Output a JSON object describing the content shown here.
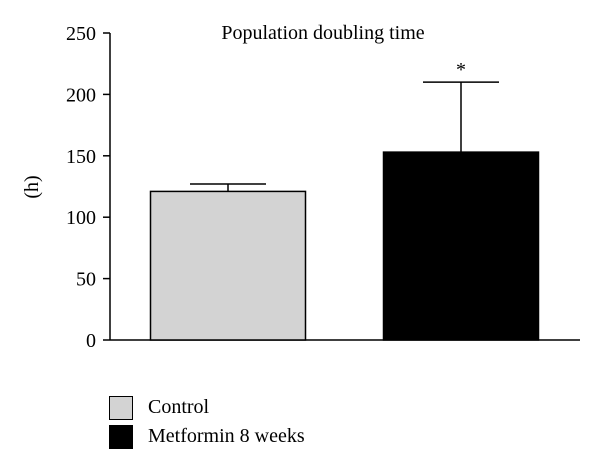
{
  "chart_data": {
    "type": "bar",
    "title": "Population doubling time",
    "ylabel": "(h)",
    "xlabel": "",
    "ylim": [
      0,
      250
    ],
    "yticks": [
      0,
      50,
      100,
      150,
      200,
      250
    ],
    "categories": [
      "Control",
      "Metformin 8 weeks"
    ],
    "values": [
      121,
      153
    ],
    "error_upper": [
      127,
      210
    ],
    "colors": [
      "#d3d3d3",
      "#000000"
    ],
    "annotations": [
      "",
      "*"
    ],
    "legend": [
      {
        "label": "Control",
        "color": "#d3d3d3"
      },
      {
        "label": "Metformin 8 weeks",
        "color": "#000000"
      }
    ],
    "legend_position": "bottom-left",
    "grid": false
  }
}
